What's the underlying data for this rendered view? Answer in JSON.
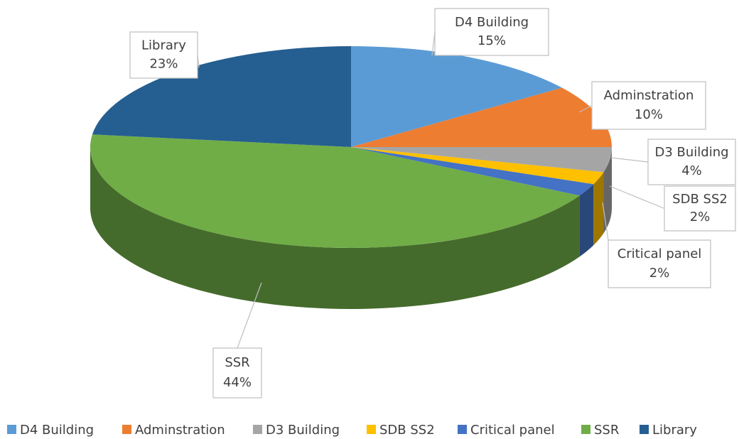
{
  "chart_data": {
    "type": "pie3d",
    "categories": [
      "D4 Building",
      "Adminstration",
      "D3 Building",
      "SDB SS2",
      "Critical panel",
      "SSR",
      "Library"
    ],
    "values": [
      15,
      10,
      4,
      2,
      2,
      44,
      23
    ],
    "value_labels": [
      "15%",
      "10%",
      "4%",
      "2%",
      "2%",
      "44%",
      "23%"
    ],
    "colors": [
      "#5b9bd5",
      "#ed7d31",
      "#a5a5a5",
      "#ffc000",
      "#4472c4",
      "#70ad47",
      "#255e91"
    ],
    "legend": "bottom"
  }
}
